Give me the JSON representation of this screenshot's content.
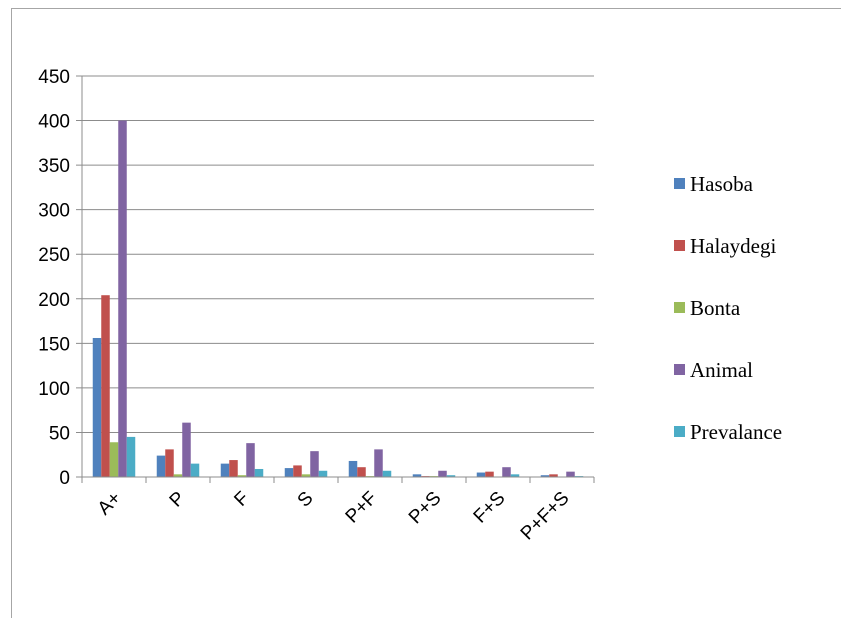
{
  "chart_data": {
    "type": "bar",
    "categories": [
      "A+",
      "P",
      "F",
      "S",
      "P+F",
      "P+S",
      "F+S",
      "P+F+S"
    ],
    "series": [
      {
        "name": "Hasoba",
        "color": "#4f81bd",
        "values": [
          156,
          24,
          15,
          10,
          18,
          3,
          5,
          2
        ]
      },
      {
        "name": "Halaydegi",
        "color": "#c0504d",
        "values": [
          204,
          31,
          19,
          13,
          11,
          1,
          6,
          3
        ]
      },
      {
        "name": "Bonta",
        "color": "#9bbb59",
        "values": [
          39,
          3,
          2,
          3,
          1,
          1,
          0,
          0
        ]
      },
      {
        "name": "Animal",
        "color": "#8064a2",
        "values": [
          400,
          61,
          38,
          29,
          31,
          7,
          11,
          6
        ]
      },
      {
        "name": "Prevalance",
        "color": "#4bacc6",
        "values": [
          45,
          15,
          9,
          7,
          7,
          2,
          3,
          1
        ]
      }
    ],
    "ylim": [
      0,
      450
    ],
    "yticks": [
      0,
      50,
      100,
      150,
      200,
      250,
      300,
      350,
      400,
      450
    ],
    "title": "",
    "xlabel": "",
    "ylabel": "",
    "grid": true,
    "legend": "right"
  }
}
